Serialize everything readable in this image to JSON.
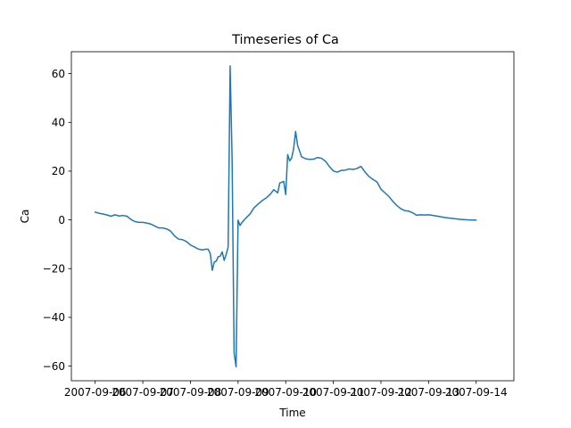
{
  "chart_data": {
    "type": "line",
    "title": "Timeseries of Ca",
    "xlabel": "Time",
    "ylabel": "Ca",
    "grid": false,
    "legend": "none",
    "x_is_date": true,
    "xlim": [
      "2007-09-05 12:00",
      "2007-09-14 19:00"
    ],
    "ylim": [
      -66,
      69
    ],
    "x_ticks": [
      {
        "date": "2007-09-06",
        "label": "2007-09-06"
      },
      {
        "date": "2007-09-07",
        "label": "2007-09-07"
      },
      {
        "date": "2007-09-08",
        "label": "2007-09-08"
      },
      {
        "date": "2007-09-09",
        "label": "2007-09-09"
      },
      {
        "date": "2007-09-10",
        "label": "2007-09-10"
      },
      {
        "date": "2007-09-11",
        "label": "2007-09-11"
      },
      {
        "date": "2007-09-12",
        "label": "2007-09-12"
      },
      {
        "date": "2007-09-13",
        "label": "2007-09-13"
      },
      {
        "date": "2007-09-14",
        "label": "2007-09-14"
      }
    ],
    "y_ticks": [
      {
        "value": 60,
        "label": "60"
      },
      {
        "value": 40,
        "label": "40"
      },
      {
        "value": 20,
        "label": "20"
      },
      {
        "value": 0,
        "label": "0"
      },
      {
        "value": -20,
        "label": "−20"
      },
      {
        "value": -40,
        "label": "−40"
      },
      {
        "value": -60,
        "label": "−60"
      }
    ],
    "series": [
      {
        "color": "#1f77b4",
        "points": [
          [
            "2007-09-06 00:00",
            3.2
          ],
          [
            "2007-09-06 02:00",
            2.7
          ],
          [
            "2007-09-06 04:00",
            2.4
          ],
          [
            "2007-09-06 06:00",
            2.0
          ],
          [
            "2007-09-06 08:00",
            1.5
          ],
          [
            "2007-09-06 10:00",
            2.1
          ],
          [
            "2007-09-06 12:00",
            1.6
          ],
          [
            "2007-09-06 14:00",
            1.8
          ],
          [
            "2007-09-06 16:00",
            1.5
          ],
          [
            "2007-09-06 18:00",
            0.2
          ],
          [
            "2007-09-06 20:00",
            -0.7
          ],
          [
            "2007-09-06 22:00",
            -1.0
          ],
          [
            "2007-09-07 00:00",
            -1.0
          ],
          [
            "2007-09-07 02:00",
            -1.3
          ],
          [
            "2007-09-07 04:00",
            -1.7
          ],
          [
            "2007-09-07 06:00",
            -2.5
          ],
          [
            "2007-09-07 08:00",
            -3.3
          ],
          [
            "2007-09-07 10:00",
            -3.3
          ],
          [
            "2007-09-07 12:00",
            -3.7
          ],
          [
            "2007-09-07 14:00",
            -4.6
          ],
          [
            "2007-09-07 16:00",
            -6.6
          ],
          [
            "2007-09-07 18:00",
            -7.9
          ],
          [
            "2007-09-07 20:00",
            -8.1
          ],
          [
            "2007-09-07 22:00",
            -8.9
          ],
          [
            "2007-09-08 00:00",
            -10.3
          ],
          [
            "2007-09-08 02:00",
            -11.1
          ],
          [
            "2007-09-08 04:00",
            -12.0
          ],
          [
            "2007-09-08 06:00",
            -12.3
          ],
          [
            "2007-09-08 08:00",
            -12.0
          ],
          [
            "2007-09-08 09:00",
            -12.1
          ],
          [
            "2007-09-08 10:00",
            -13.9
          ],
          [
            "2007-09-08 11:00",
            -20.7
          ],
          [
            "2007-09-08 12:00",
            -17.3
          ],
          [
            "2007-09-08 13:00",
            -16.9
          ],
          [
            "2007-09-08 14:00",
            -15.1
          ],
          [
            "2007-09-08 15:00",
            -14.9
          ],
          [
            "2007-09-08 16:00",
            -13.1
          ],
          [
            "2007-09-08 17:00",
            -16.6
          ],
          [
            "2007-09-08 18:00",
            -14.2
          ],
          [
            "2007-09-08 19:00",
            -11.1
          ],
          [
            "2007-09-08 20:00",
            63.2
          ],
          [
            "2007-09-08 21:00",
            24.9
          ],
          [
            "2007-09-08 22:00",
            -54.6
          ],
          [
            "2007-09-08 23:00",
            -60.3
          ],
          [
            "2007-09-09 00:00",
            -0.1
          ],
          [
            "2007-09-09 01:00",
            -2.3
          ],
          [
            "2007-09-09 02:00",
            -1.0
          ],
          [
            "2007-09-09 04:00",
            0.8
          ],
          [
            "2007-09-09 06:00",
            2.4
          ],
          [
            "2007-09-09 08:00",
            4.9
          ],
          [
            "2007-09-09 10:00",
            6.4
          ],
          [
            "2007-09-09 12:00",
            7.8
          ],
          [
            "2007-09-09 14:00",
            8.9
          ],
          [
            "2007-09-09 16:00",
            10.3
          ],
          [
            "2007-09-09 18:00",
            12.4
          ],
          [
            "2007-09-09 20:00",
            11.1
          ],
          [
            "2007-09-09 21:00",
            15.1
          ],
          [
            "2007-09-09 23:00",
            15.8
          ],
          [
            "2007-09-10 00:00",
            10.4
          ],
          [
            "2007-09-10 01:00",
            26.8
          ],
          [
            "2007-09-10 02:00",
            24.2
          ],
          [
            "2007-09-10 03:00",
            25.4
          ],
          [
            "2007-09-10 04:00",
            29.2
          ],
          [
            "2007-09-10 05:00",
            36.3
          ],
          [
            "2007-09-10 06:00",
            30.6
          ],
          [
            "2007-09-10 08:00",
            25.9
          ],
          [
            "2007-09-10 10:00",
            25.1
          ],
          [
            "2007-09-10 12:00",
            24.8
          ],
          [
            "2007-09-10 14:00",
            24.9
          ],
          [
            "2007-09-10 16:00",
            25.6
          ],
          [
            "2007-09-10 18:00",
            25.3
          ],
          [
            "2007-09-10 20:00",
            24.1
          ],
          [
            "2007-09-10 22:00",
            21.9
          ],
          [
            "2007-09-11 00:00",
            20.1
          ],
          [
            "2007-09-11 02:00",
            19.6
          ],
          [
            "2007-09-11 04:00",
            20.3
          ],
          [
            "2007-09-11 06:00",
            20.4
          ],
          [
            "2007-09-11 08:00",
            20.9
          ],
          [
            "2007-09-11 10:00",
            20.7
          ],
          [
            "2007-09-11 12:00",
            21.1
          ],
          [
            "2007-09-11 13:00",
            21.6
          ],
          [
            "2007-09-11 14:00",
            21.9
          ],
          [
            "2007-09-11 16:00",
            19.6
          ],
          [
            "2007-09-11 18:00",
            17.8
          ],
          [
            "2007-09-11 20:00",
            16.6
          ],
          [
            "2007-09-11 22:00",
            15.6
          ],
          [
            "2007-09-12 00:00",
            12.6
          ],
          [
            "2007-09-12 02:00",
            11.1
          ],
          [
            "2007-09-12 04:00",
            9.6
          ],
          [
            "2007-09-12 06:00",
            7.6
          ],
          [
            "2007-09-12 08:00",
            5.9
          ],
          [
            "2007-09-12 10:00",
            4.6
          ],
          [
            "2007-09-12 12:00",
            3.8
          ],
          [
            "2007-09-12 14:00",
            3.6
          ],
          [
            "2007-09-12 16:00",
            2.9
          ],
          [
            "2007-09-12 18:00",
            1.9
          ],
          [
            "2007-09-12 20:00",
            2.1
          ],
          [
            "2007-09-12 22:00",
            2.0
          ],
          [
            "2007-09-13 00:00",
            2.1
          ],
          [
            "2007-09-13 04:00",
            1.6
          ],
          [
            "2007-09-13 08:00",
            1.0
          ],
          [
            "2007-09-13 12:00",
            0.6
          ],
          [
            "2007-09-13 16:00",
            0.2
          ],
          [
            "2007-09-13 20:00",
            0.0
          ],
          [
            "2007-09-14 00:00",
            -0.1
          ]
        ]
      }
    ]
  }
}
